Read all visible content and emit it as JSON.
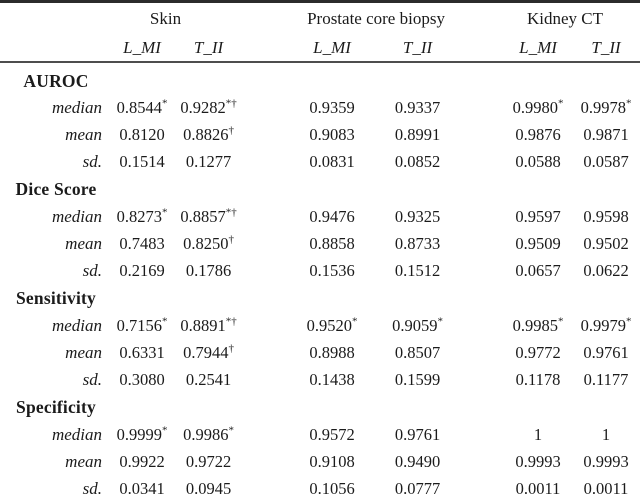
{
  "table": {
    "groups": [
      {
        "label": "Skin",
        "sub_columns": [
          "L_MI",
          "T_II"
        ]
      },
      {
        "label": "Prostate core biopsy",
        "sub_columns": [
          "L_MI",
          "T_II"
        ]
      },
      {
        "label": "Kidney CT",
        "sub_columns": [
          "L_MI",
          "T_II"
        ]
      }
    ],
    "sections": [
      {
        "name": "AUROC",
        "rows": [
          {
            "label": "median",
            "cells": [
              {
                "v": "0.8544",
                "sup": "*"
              },
              {
                "v": "0.9282",
                "sup": "*†"
              },
              {
                "v": "0.9359",
                "sup": ""
              },
              {
                "v": "0.9337",
                "sup": ""
              },
              {
                "v": "0.9980",
                "sup": "*"
              },
              {
                "v": "0.9978",
                "sup": "*"
              }
            ]
          },
          {
            "label": "mean",
            "cells": [
              {
                "v": "0.8120",
                "sup": ""
              },
              {
                "v": "0.8826",
                "sup": "†"
              },
              {
                "v": "0.9083",
                "sup": ""
              },
              {
                "v": "0.8991",
                "sup": ""
              },
              {
                "v": "0.9876",
                "sup": ""
              },
              {
                "v": "0.9871",
                "sup": ""
              }
            ]
          },
          {
            "label": "sd.",
            "cells": [
              {
                "v": "0.1514",
                "sup": ""
              },
              {
                "v": "0.1277",
                "sup": ""
              },
              {
                "v": "0.0831",
                "sup": ""
              },
              {
                "v": "0.0852",
                "sup": ""
              },
              {
                "v": "0.0588",
                "sup": ""
              },
              {
                "v": "0.0587",
                "sup": ""
              }
            ]
          }
        ]
      },
      {
        "name": "Dice Score",
        "rows": [
          {
            "label": "median",
            "cells": [
              {
                "v": "0.8273",
                "sup": "*"
              },
              {
                "v": "0.8857",
                "sup": "*†"
              },
              {
                "v": "0.9476",
                "sup": ""
              },
              {
                "v": "0.9325",
                "sup": ""
              },
              {
                "v": "0.9597",
                "sup": ""
              },
              {
                "v": "0.9598",
                "sup": ""
              }
            ]
          },
          {
            "label": "mean",
            "cells": [
              {
                "v": "0.7483",
                "sup": ""
              },
              {
                "v": "0.8250",
                "sup": "†"
              },
              {
                "v": "0.8858",
                "sup": ""
              },
              {
                "v": "0.8733",
                "sup": ""
              },
              {
                "v": "0.9509",
                "sup": ""
              },
              {
                "v": "0.9502",
                "sup": ""
              }
            ]
          },
          {
            "label": "sd.",
            "cells": [
              {
                "v": "0.2169",
                "sup": ""
              },
              {
                "v": "0.1786",
                "sup": ""
              },
              {
                "v": "0.1536",
                "sup": ""
              },
              {
                "v": "0.1512",
                "sup": ""
              },
              {
                "v": "0.0657",
                "sup": ""
              },
              {
                "v": "0.0622",
                "sup": ""
              }
            ]
          }
        ]
      },
      {
        "name": "Sensitivity",
        "rows": [
          {
            "label": "median",
            "cells": [
              {
                "v": "0.7156",
                "sup": "*"
              },
              {
                "v": "0.8891",
                "sup": "*†"
              },
              {
                "v": "0.9520",
                "sup": "*"
              },
              {
                "v": "0.9059",
                "sup": "*"
              },
              {
                "v": "0.9985",
                "sup": "*"
              },
              {
                "v": "0.9979",
                "sup": "*"
              }
            ]
          },
          {
            "label": "mean",
            "cells": [
              {
                "v": "0.6331",
                "sup": ""
              },
              {
                "v": "0.7944",
                "sup": "†"
              },
              {
                "v": "0.8988",
                "sup": ""
              },
              {
                "v": "0.8507",
                "sup": ""
              },
              {
                "v": "0.9772",
                "sup": ""
              },
              {
                "v": "0.9761",
                "sup": ""
              }
            ]
          },
          {
            "label": "sd.",
            "cells": [
              {
                "v": "0.3080",
                "sup": ""
              },
              {
                "v": "0.2541",
                "sup": ""
              },
              {
                "v": "0.1438",
                "sup": ""
              },
              {
                "v": "0.1599",
                "sup": ""
              },
              {
                "v": "0.1178",
                "sup": ""
              },
              {
                "v": "0.1177",
                "sup": ""
              }
            ]
          }
        ]
      },
      {
        "name": "Specificity",
        "rows": [
          {
            "label": "median",
            "cells": [
              {
                "v": "0.9999",
                "sup": "*"
              },
              {
                "v": "0.9986",
                "sup": "*"
              },
              {
                "v": "0.9572",
                "sup": ""
              },
              {
                "v": "0.9761",
                "sup": ""
              },
              {
                "v": "1",
                "sup": ""
              },
              {
                "v": "1",
                "sup": ""
              }
            ]
          },
          {
            "label": "mean",
            "cells": [
              {
                "v": "0.9922",
                "sup": ""
              },
              {
                "v": "0.9722",
                "sup": ""
              },
              {
                "v": "0.9108",
                "sup": ""
              },
              {
                "v": "0.9490",
                "sup": ""
              },
              {
                "v": "0.9993",
                "sup": ""
              },
              {
                "v": "0.9993",
                "sup": ""
              }
            ]
          },
          {
            "label": "sd.",
            "cells": [
              {
                "v": "0.0341",
                "sup": ""
              },
              {
                "v": "0.0945",
                "sup": ""
              },
              {
                "v": "0.1056",
                "sup": ""
              },
              {
                "v": "0.0777",
                "sup": ""
              },
              {
                "v": "0.0011",
                "sup": ""
              },
              {
                "v": "0.0011",
                "sup": ""
              }
            ]
          }
        ]
      }
    ],
    "colors": {
      "text": "#1b1b1b",
      "rule_top": "#2b2b2b",
      "rule_mid": "#4e4e4e",
      "background": "#ffffff"
    }
  }
}
